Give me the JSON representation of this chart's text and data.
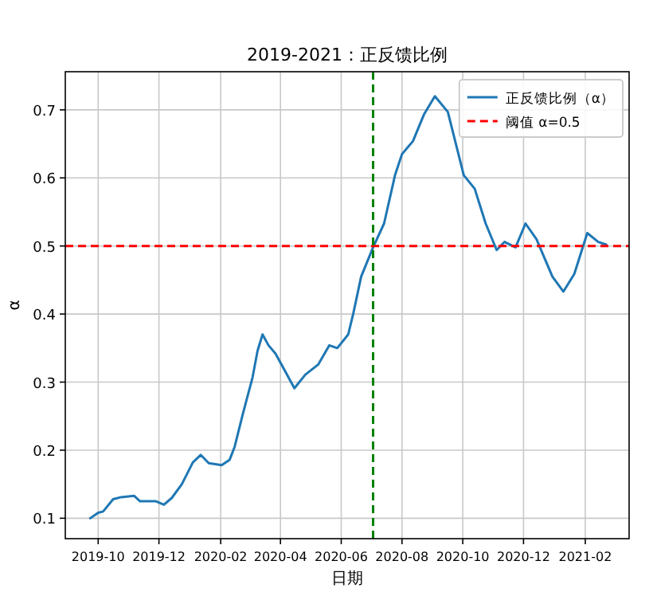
{
  "chart_data": {
    "type": "line",
    "title": "2019-2021：正反馈比例",
    "xlabel": "日期",
    "ylabel": "α",
    "xlim": [
      "2019-08-29",
      "2021-03-17"
    ],
    "ylim": [
      0.07,
      0.756
    ],
    "xticks": [
      "2019-10",
      "2019-12",
      "2020-02",
      "2020-04",
      "2020-06",
      "2020-08",
      "2020-10",
      "2020-12",
      "2021-02"
    ],
    "yticks": [
      0.1,
      0.2,
      0.3,
      0.4,
      0.5,
      0.6,
      0.7
    ],
    "grid": true,
    "legend": "top right",
    "x": [
      "2019-09-23",
      "2019-10-01",
      "2019-10-06",
      "2019-10-16",
      "2019-10-24",
      "2019-11-06",
      "2019-11-12",
      "2019-11-28",
      "2019-12-06",
      "2019-12-14",
      "2019-12-24",
      "2020-01-04",
      "2020-01-12",
      "2020-01-20",
      "2020-02-02",
      "2020-02-10",
      "2020-02-15",
      "2020-02-23",
      "2020-03-04",
      "2020-03-09",
      "2020-03-14",
      "2020-03-20",
      "2020-03-27",
      "2020-04-05",
      "2020-04-15",
      "2020-04-26",
      "2020-05-09",
      "2020-05-20",
      "2020-05-28",
      "2020-06-08",
      "2020-06-13",
      "2020-06-21",
      "2020-07-03",
      "2020-07-14",
      "2020-07-25",
      "2020-08-01",
      "2020-08-12",
      "2020-08-23",
      "2020-09-03",
      "2020-09-16",
      "2020-10-02",
      "2020-10-13",
      "2020-10-24",
      "2020-11-04",
      "2020-11-12",
      "2020-11-23",
      "2020-12-03",
      "2020-12-14",
      "2020-12-30",
      "2021-01-10",
      "2021-01-21",
      "2021-02-03",
      "2021-02-14",
      "2021-02-22"
    ],
    "series": [
      {
        "name": "正反馈比例（α）",
        "color": "#1f77b4",
        "line_style": "solid",
        "values": [
          0.1,
          0.108,
          0.11,
          0.128,
          0.131,
          0.133,
          0.125,
          0.125,
          0.12,
          0.13,
          0.15,
          0.182,
          0.193,
          0.181,
          0.178,
          0.186,
          0.205,
          0.252,
          0.307,
          0.346,
          0.37,
          0.354,
          0.342,
          0.318,
          0.291,
          0.311,
          0.326,
          0.354,
          0.35,
          0.37,
          0.4,
          0.455,
          0.498,
          0.533,
          0.604,
          0.635,
          0.654,
          0.693,
          0.72,
          0.697,
          0.604,
          0.584,
          0.533,
          0.494,
          0.506,
          0.498,
          0.533,
          0.51,
          0.455,
          0.433,
          0.459,
          0.519,
          0.506,
          0.502
        ]
      }
    ],
    "ref_lines": [
      {
        "axis": "y",
        "value": 0.5,
        "label": "阈值 α=0.5",
        "color": "#ff0000",
        "line_style": "dashed"
      },
      {
        "axis": "x",
        "value": "2020-07-03",
        "color": "#008000",
        "line_style": "dashed"
      }
    ]
  }
}
